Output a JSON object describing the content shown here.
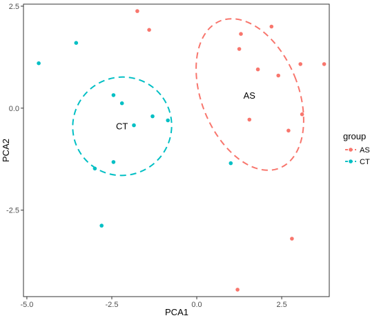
{
  "chart_data": {
    "type": "scatter",
    "xlabel": "PCA1",
    "ylabel": "PCA2",
    "xlim": [
      -5.1,
      3.9
    ],
    "ylim": [
      -4.62,
      2.55
    ],
    "xticks": [
      -5.0,
      -2.5,
      0.0,
      2.5
    ],
    "xtick_labels": [
      "-5.0",
      "-2.5",
      "0.0",
      "2.5"
    ],
    "yticks": [
      2.5,
      0.0,
      -2.5
    ],
    "ytick_labels": [
      "2.5",
      "0.0",
      "-2.5"
    ],
    "grid": false,
    "legend": {
      "title": "group",
      "placement": "right"
    },
    "series": [
      {
        "name": "AS",
        "color": "#F8766D",
        "points": [
          [
            -1.75,
            2.38
          ],
          [
            -1.4,
            1.92
          ],
          [
            1.3,
            1.82
          ],
          [
            2.2,
            2.0
          ],
          [
            1.25,
            1.45
          ],
          [
            3.05,
            1.08
          ],
          [
            3.75,
            1.08
          ],
          [
            1.8,
            0.95
          ],
          [
            2.4,
            0.8
          ],
          [
            3.1,
            -0.15
          ],
          [
            1.55,
            -0.28
          ],
          [
            2.7,
            -0.55
          ],
          [
            2.8,
            -3.2
          ],
          [
            1.2,
            -4.45
          ]
        ],
        "ellipse": {
          "cx": 1.45,
          "cy": 0.33,
          "rx_label": "AS"
        },
        "label": "AS",
        "label_pos": [
          1.55,
          0.3
        ]
      },
      {
        "name": "CT",
        "color": "#00BFC4",
        "points": [
          [
            -4.65,
            1.1
          ],
          [
            -3.55,
            1.6
          ],
          [
            -2.45,
            0.32
          ],
          [
            -2.2,
            0.12
          ],
          [
            -1.3,
            -0.2
          ],
          [
            -0.85,
            -0.3
          ],
          [
            -1.85,
            -0.42
          ],
          [
            -2.45,
            -1.32
          ],
          [
            -3.0,
            -1.48
          ],
          [
            1.0,
            -1.35
          ],
          [
            -2.8,
            -2.88
          ]
        ],
        "label": "CT",
        "label_pos": [
          -2.2,
          -0.45
        ]
      }
    ]
  }
}
